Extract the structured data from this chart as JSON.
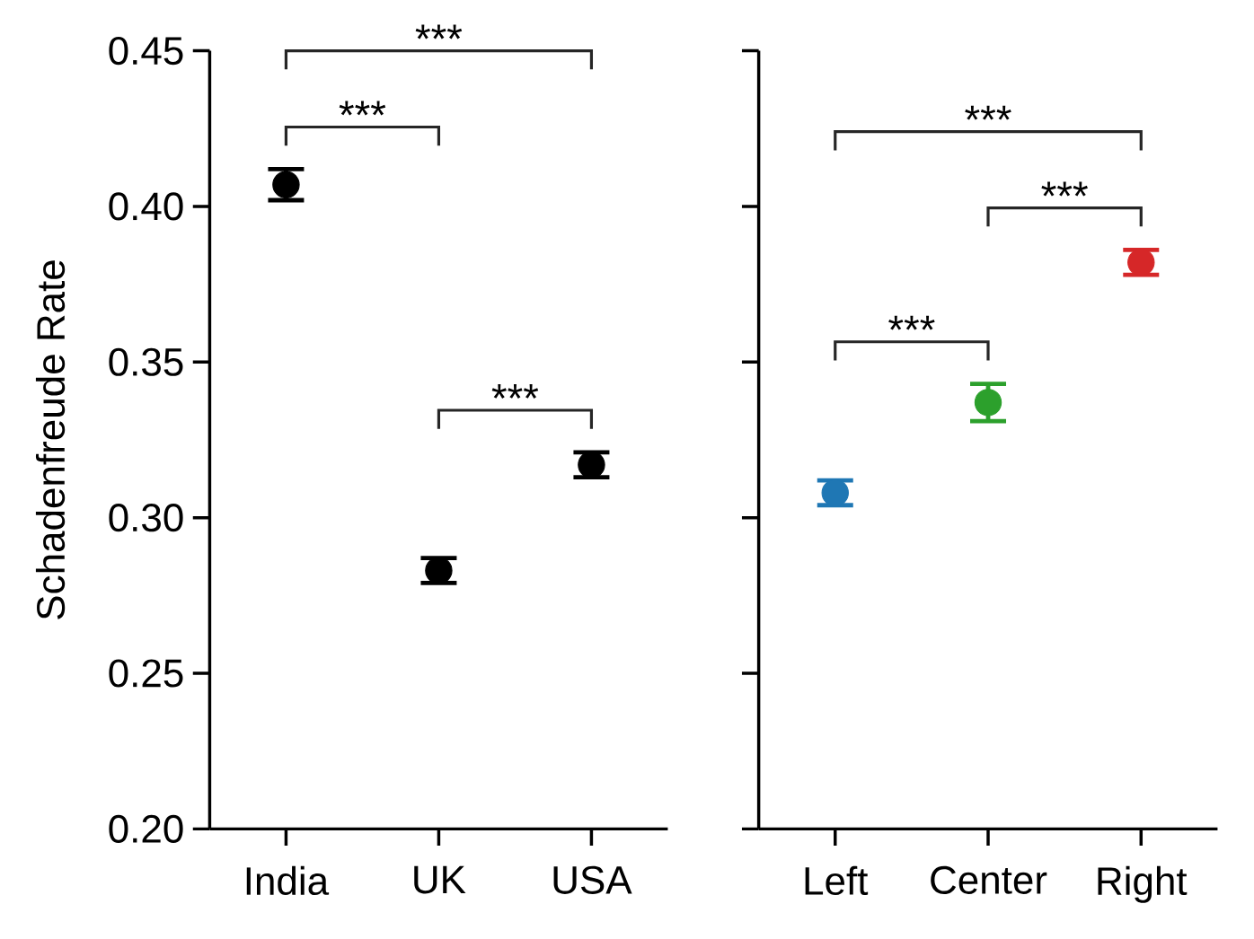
{
  "chart_data": [
    {
      "type": "scatter",
      "ylabel": "Schadenfreude Rate",
      "categories": [
        "India",
        "UK",
        "USA"
      ],
      "values": [
        0.407,
        0.283,
        0.317
      ],
      "errors": [
        0.005,
        0.004,
        0.004
      ],
      "color": "#000000",
      "marker": "circle",
      "ylim": [
        0.2,
        0.45
      ],
      "yticks": [
        {
          "value": 0.2,
          "label": "0.20"
        },
        0.25,
        {
          "value": 0.3,
          "label": "0.30"
        },
        0.35,
        {
          "value": 0.4,
          "label": "0.40"
        },
        0.45
      ],
      "annotations": [
        "***",
        "***",
        "***"
      ]
    },
    {
      "type": "scatter",
      "categories": [
        "Left",
        "Center",
        "Right"
      ],
      "values": [
        0.308,
        0.337,
        0.382
      ],
      "errors": [
        0.004,
        0.006,
        0.004
      ],
      "colors": [
        "#1f77b4",
        "#2ca02c",
        "#d62728"
      ],
      "marker": "circle",
      "ylim": [
        0.2,
        0.45
      ],
      "yticks": [
        0.2,
        0.25,
        0.3,
        0.35,
        0.4,
        0.45
      ],
      "tick_labels": "x",
      "annotations": [
        "***",
        "***",
        "***"
      ]
    }
  ]
}
